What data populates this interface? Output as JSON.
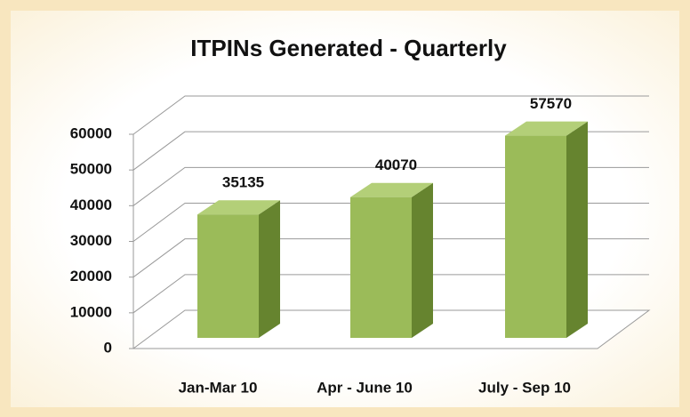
{
  "chart_data": {
    "type": "bar",
    "title": "ITPINs Generated - Quarterly",
    "categories": [
      "Jan-Mar 10",
      "Apr - June 10",
      "July - Sep 10"
    ],
    "values": [
      35135,
      40070,
      57570
    ],
    "colors": {
      "front": "#9bbb59",
      "top": "#b3cf78",
      "side": "#66842f"
    },
    "ylim": [
      0,
      60000
    ],
    "yticks": [
      0,
      10000,
      20000,
      30000,
      40000,
      50000,
      60000
    ],
    "grid": true
  }
}
